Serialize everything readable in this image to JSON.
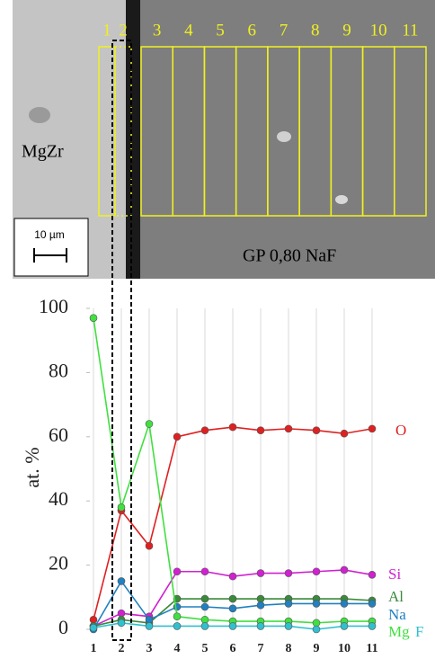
{
  "image": {
    "labels": [
      "MgZr",
      "GP 0,80 NaF"
    ],
    "scale_bar": "10 µm",
    "regions": [
      "1",
      "2",
      "3",
      "4",
      "5",
      "6",
      "7",
      "8",
      "9",
      "10",
      "11"
    ]
  },
  "chart_data": {
    "type": "line",
    "y_label": "at. %",
    "categories": [
      "1",
      "2",
      "3",
      "4",
      "5",
      "6",
      "7",
      "8",
      "9",
      "10",
      "11"
    ],
    "ylim": [
      0,
      100
    ],
    "yticks": [
      0,
      20,
      40,
      60,
      80,
      100
    ],
    "grid": "x",
    "series": [
      {
        "name": "O",
        "color": "#e02020",
        "values": [
          3,
          37,
          26,
          60,
          62,
          63,
          62,
          62.5,
          62,
          61,
          62.5
        ]
      },
      {
        "name": "Si",
        "color": "#d020d0",
        "values": [
          1,
          5,
          4,
          18,
          18,
          16.5,
          17.5,
          17.5,
          18,
          18.5,
          17
        ]
      },
      {
        "name": "Al",
        "color": "#3a8a3a",
        "values": [
          1,
          3,
          2,
          9.5,
          9.5,
          9.5,
          9.5,
          9.5,
          9.5,
          9.5,
          9
        ]
      },
      {
        "name": "Na",
        "color": "#2080c0",
        "values": [
          0,
          15,
          3,
          7,
          7,
          6.5,
          7.5,
          8,
          8,
          8,
          8
        ]
      },
      {
        "name": "Mg",
        "color": "#40e040",
        "values": [
          97,
          38,
          64,
          4,
          3,
          2.5,
          2.5,
          2.5,
          2,
          2.5,
          2.5
        ]
      },
      {
        "name": "F",
        "color": "#30c0d0",
        "values": [
          0.5,
          2,
          1,
          1,
          1,
          1,
          1,
          1,
          0,
          1,
          1
        ]
      }
    ]
  }
}
